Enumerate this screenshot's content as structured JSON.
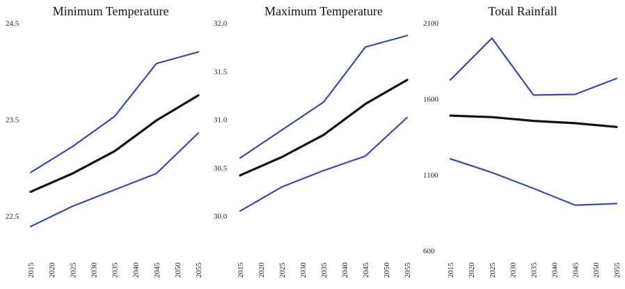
{
  "colors": {
    "bound": "#3949a8",
    "mean": "#111111"
  },
  "chart_data": [
    {
      "type": "line",
      "title": "Minimum Temperature",
      "x_ticks": [
        "2015",
        "2020",
        "2025",
        "2030",
        "2035",
        "2040",
        "2045",
        "2050",
        "2055"
      ],
      "y_ticks": [
        "24.5",
        "23.5",
        "22.5"
      ],
      "ylim": [
        22.5,
        24.5
      ],
      "x": [
        2015,
        2025,
        2035,
        2045,
        2055
      ],
      "series": [
        {
          "role": "upper",
          "values": [
            22.95,
            23.22,
            23.53,
            24.08,
            24.2
          ]
        },
        {
          "role": "mean",
          "values": [
            22.75,
            22.94,
            23.17,
            23.49,
            23.75
          ]
        },
        {
          "role": "lower",
          "values": [
            22.39,
            22.6,
            22.77,
            22.94,
            23.36
          ]
        }
      ]
    },
    {
      "type": "line",
      "title": "Maximum Temperature",
      "x_ticks": [
        "2015",
        "2020",
        "2025",
        "2030",
        "2035",
        "2040",
        "2045",
        "2050",
        "2055"
      ],
      "y_ticks": [
        "32.0",
        "31.5",
        "31.0",
        "30.5",
        "30.0"
      ],
      "ylim": [
        30.0,
        32.0
      ],
      "x": [
        2015,
        2025,
        2035,
        2045,
        2055
      ],
      "series": [
        {
          "role": "upper",
          "values": [
            30.6,
            30.89,
            31.18,
            31.75,
            31.87
          ]
        },
        {
          "role": "mean",
          "values": [
            30.42,
            30.61,
            30.84,
            31.16,
            31.41
          ]
        },
        {
          "role": "lower",
          "values": [
            30.05,
            30.3,
            30.47,
            30.62,
            31.02
          ]
        }
      ]
    },
    {
      "type": "line",
      "title": "Total Rainfall",
      "x_ticks": [
        "2015",
        "2020",
        "2025",
        "2030",
        "2035",
        "2040",
        "2045",
        "2050",
        "2055"
      ],
      "y_ticks": [
        "2100",
        "1600",
        "1100",
        "600"
      ],
      "ylim": [
        600,
        2100
      ],
      "x": [
        2015,
        2025,
        2035,
        2045,
        2055
      ],
      "series": [
        {
          "role": "upper",
          "values": [
            1725,
            2000,
            1625,
            1630,
            1735
          ]
        },
        {
          "role": "mean",
          "values": [
            1490,
            1480,
            1455,
            1440,
            1415
          ]
        },
        {
          "role": "lower",
          "values": [
            1205,
            1115,
            1010,
            900,
            910
          ]
        }
      ]
    }
  ]
}
